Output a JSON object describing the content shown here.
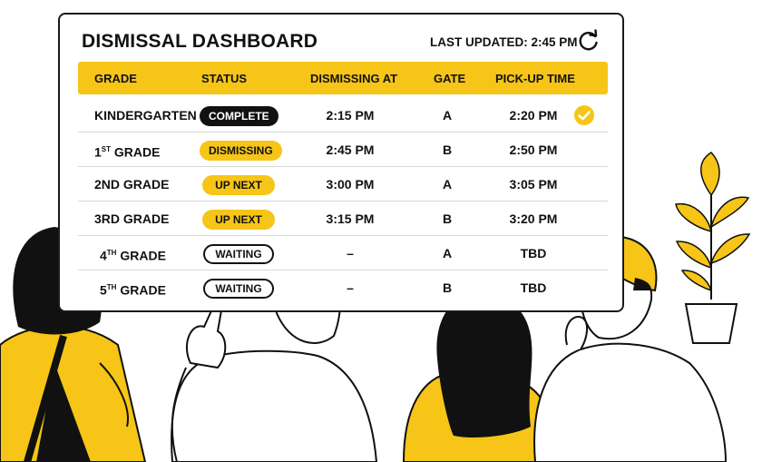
{
  "header": {
    "title": "DISMISSAL DASHBOARD",
    "last_updated": "LAST UPDATED: 2:45 PM",
    "refresh_icon": "refresh-icon"
  },
  "table": {
    "columns": [
      "GRADE",
      "STATUS",
      "DISMISSING AT",
      "GATE",
      "PICK-UP TIME"
    ],
    "rows": [
      {
        "grade": "KINDERGARTEN",
        "status": "COMPLETE",
        "dismissing_at": "2:15 PM",
        "gate": "A",
        "pickup": "2:20 PM",
        "done": true
      },
      {
        "grade_num": "1",
        "grade_sup": "ST",
        "grade_word": "GRADE",
        "status": "DISMISSING",
        "dismissing_at": "2:45 PM",
        "gate": "B",
        "pickup": "2:50 PM"
      },
      {
        "grade": "2ND GRADE",
        "status": "UP NEXT",
        "dismissing_at": "3:00 PM",
        "gate": "A",
        "pickup": "3:05 PM"
      },
      {
        "grade": "3RD GRADE",
        "status": "UP NEXT",
        "dismissing_at": "3:15 PM",
        "gate": "B",
        "pickup": "3:20 PM"
      },
      {
        "grade_num": "4",
        "grade_sup": "TH",
        "grade_word": "GRADE",
        "status": "WAITING",
        "dismissing_at": "–",
        "gate": "A",
        "pickup": "TBD"
      },
      {
        "grade_num": "5",
        "grade_sup": "TH",
        "grade_word": "GRADE",
        "status": "WAITING",
        "dismissing_at": "–",
        "gate": "B",
        "pickup": "TBD"
      }
    ]
  },
  "colors": {
    "accent": "#F6C517",
    "complete": "#111111"
  },
  "icons": [
    "refresh-icon",
    "check-circle-icon",
    "plant-icon"
  ]
}
